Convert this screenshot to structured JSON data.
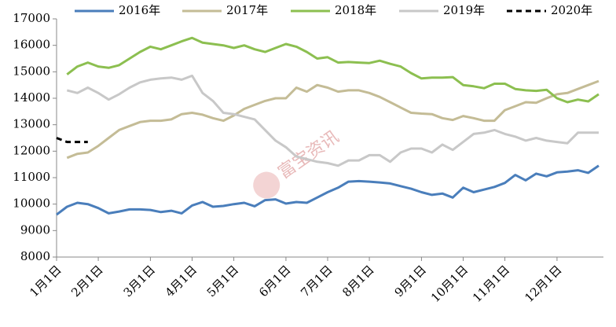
{
  "chart_data": {
    "type": "line",
    "watermark": "富宝资讯",
    "legend": "top",
    "categories": [
      "1月1日",
      null,
      null,
      null,
      "2月1日",
      null,
      null,
      null,
      null,
      "3月1日",
      null,
      null,
      null,
      "4月1日",
      null,
      null,
      null,
      "5月1日",
      null,
      null,
      null,
      null,
      "6月1日",
      null,
      null,
      null,
      "7月1日",
      null,
      null,
      null,
      "8月1日",
      null,
      null,
      null,
      null,
      "9月1日",
      null,
      null,
      null,
      "10月1日",
      null,
      null,
      null,
      "11月1日",
      null,
      null,
      null,
      null,
      "12月1日",
      null,
      null,
      null,
      null
    ],
    "ylim": [
      8000,
      17000
    ],
    "yticks": [
      8000,
      9000,
      10000,
      11000,
      12000,
      13000,
      14000,
      15000,
      16000,
      17000
    ],
    "series": [
      {
        "name": "2016年",
        "color": "#4a7ebb",
        "dashed": false,
        "values": [
          9600,
          9900,
          10050,
          10000,
          9850,
          9650,
          9720,
          9800,
          9800,
          9780,
          9700,
          9750,
          9650,
          9950,
          10080,
          9900,
          9930,
          10000,
          10050,
          9920,
          10150,
          10180,
          10020,
          10080,
          10050,
          10250,
          10450,
          10620,
          10850,
          10870,
          10850,
          10820,
          10780,
          10680,
          10580,
          10450,
          10350,
          10400,
          10250,
          10620,
          10450,
          10550,
          10650,
          10800,
          11100,
          10900,
          11150,
          11050,
          11200,
          11230,
          11280,
          11180,
          11450
        ]
      },
      {
        "name": "2017年",
        "color": "#c4bc96",
        "dashed": false,
        "values": [
          null,
          11750,
          11900,
          11950,
          12200,
          12500,
          12800,
          12950,
          13100,
          13150,
          13150,
          13200,
          13400,
          13450,
          13380,
          13250,
          13150,
          13350,
          13600,
          13750,
          13900,
          14000,
          14000,
          14400,
          14250,
          14500,
          14400,
          14250,
          14300,
          14300,
          14200,
          14050,
          13850,
          13650,
          13450,
          13420,
          13400,
          13250,
          13180,
          13330,
          13250,
          13150,
          13150,
          13550,
          13700,
          13850,
          13830,
          14000,
          14150,
          14200,
          14350,
          14500,
          14650
        ]
      },
      {
        "name": "2018年",
        "color": "#8cbf50",
        "dashed": false,
        "values": [
          null,
          14900,
          15200,
          15350,
          15200,
          15150,
          15250,
          15500,
          15750,
          15950,
          15850,
          16000,
          16150,
          16280,
          16100,
          16050,
          16000,
          15900,
          16000,
          15850,
          15750,
          15900,
          16050,
          15950,
          15750,
          15500,
          15550,
          15350,
          15370,
          15350,
          15330,
          15420,
          15300,
          15200,
          14950,
          14750,
          14780,
          14780,
          14800,
          14500,
          14450,
          14380,
          14550,
          14550,
          14350,
          14300,
          14280,
          14320,
          14000,
          13850,
          13950,
          13880,
          14150
        ]
      },
      {
        "name": "2019年",
        "color": "#c8c8c8",
        "dashed": false,
        "values": [
          null,
          14300,
          14200,
          14400,
          14200,
          13950,
          14150,
          14400,
          14600,
          14700,
          14750,
          14780,
          14700,
          14850,
          14200,
          13900,
          13450,
          13400,
          13300,
          13200,
          12800,
          12400,
          12150,
          11800,
          11700,
          11600,
          11550,
          11450,
          11650,
          11650,
          11850,
          11850,
          11600,
          11950,
          12100,
          12100,
          11950,
          12250,
          12050,
          12350,
          12650,
          12700,
          12800,
          12650,
          12550,
          12400,
          12500,
          12400,
          12350,
          12300,
          12700,
          12700,
          12700
        ]
      },
      {
        "name": "2020年",
        "color": "#000000",
        "dashed": true,
        "values": [
          12500,
          12350,
          12350,
          12350,
          null,
          null,
          null,
          null,
          null,
          null,
          null,
          null,
          null,
          null,
          null,
          null,
          null,
          null,
          null,
          null,
          null,
          null,
          null,
          null,
          null,
          null,
          null,
          null,
          null,
          null,
          null,
          null,
          null,
          null,
          null,
          null,
          null,
          null,
          null,
          null,
          null,
          null,
          null,
          null,
          null,
          null,
          null,
          null,
          null,
          null,
          null,
          null,
          null
        ]
      }
    ]
  }
}
